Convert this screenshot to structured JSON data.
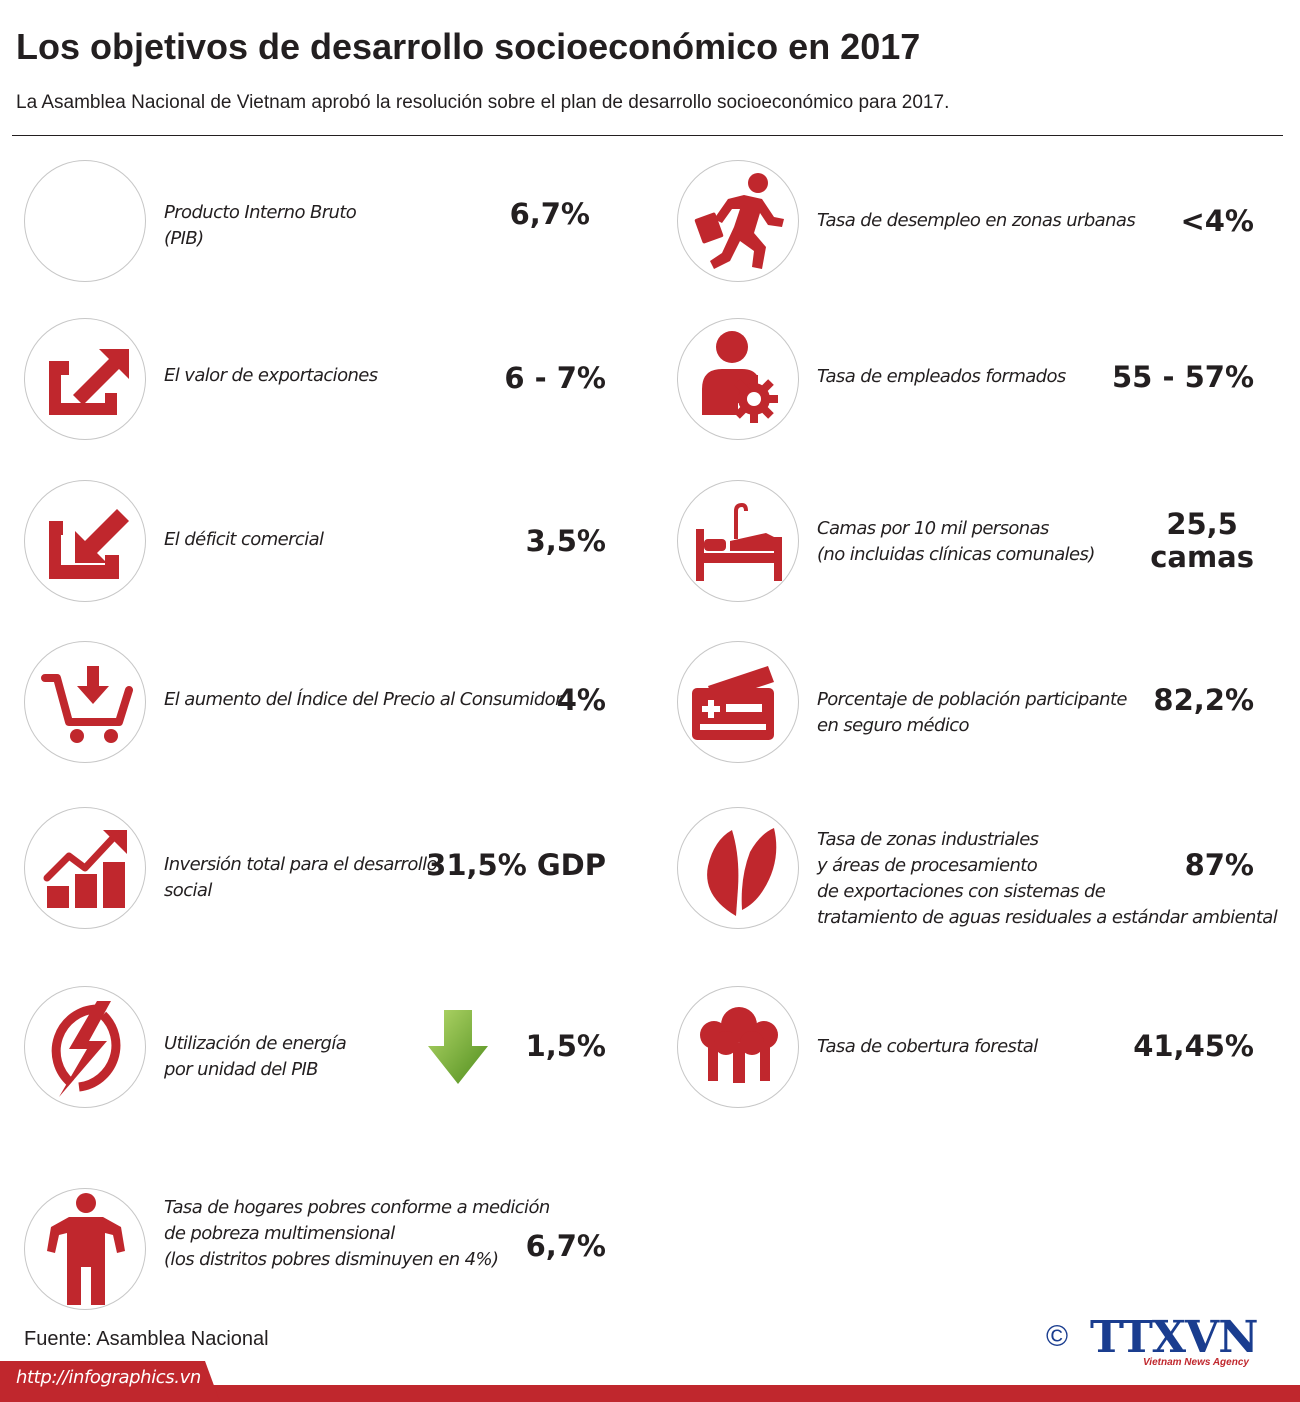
{
  "header": {
    "title": "Los objetivos de desarrollo socioeconómico en 2017",
    "subtitle": "La Asamblea Nacional de Vietnam aprobó la resolución sobre el plan de desarrollo socioeconómico para 2017."
  },
  "colors": {
    "accent": "#c0272d",
    "text": "#231f20",
    "circle_border": "#c7c7c7",
    "arrow_green": "#6fae2f",
    "logo_blue": "#1a3d8f"
  },
  "left": [
    {
      "icon": "blank-icon",
      "label": [
        "Producto Interno Bruto",
        " (PIB)"
      ],
      "value": [
        "6,7%"
      ]
    },
    {
      "icon": "export-arrow-icon",
      "label": [
        "El valor de exportaciones"
      ],
      "value": [
        "6 - 7%"
      ]
    },
    {
      "icon": "import-arrow-icon",
      "label": [
        "El déficit comercial"
      ],
      "value": [
        "3,5%"
      ]
    },
    {
      "icon": "shopping-cart-icon",
      "label": [
        "El aumento del Índice del Precio al Consumidor"
      ],
      "value": [
        "4%"
      ]
    },
    {
      "icon": "growth-chart-icon",
      "label": [
        "Inversión total para el desarrollo",
        "social"
      ],
      "value": [
        "31,5% GDP"
      ]
    },
    {
      "icon": "lightning-icon",
      "label": [
        "Utilización de energía",
        "por unidad del PIB"
      ],
      "value": [
        "1,5%"
      ],
      "trend_icon": "green-down-arrow-icon"
    },
    {
      "icon": "person-icon",
      "label": [
        "Tasa de hogares  pobres conforme a medición",
        "de pobreza multimensional",
        "(los distritos pobres  disminuyen en 4%)"
      ],
      "value": [
        "6,7%"
      ]
    }
  ],
  "right": [
    {
      "icon": "running-man-icon",
      "label": [
        "Tasa de desempleo en zonas urbanas"
      ],
      "value": [
        "<4%"
      ]
    },
    {
      "icon": "worker-gear-icon",
      "label": [
        "Tasa de empleados formados"
      ],
      "value": [
        "55 - 57%"
      ]
    },
    {
      "icon": "hospital-bed-icon",
      "label": [
        "Camas por 10 mil personas",
        "(no incluidas clínicas comunales)"
      ],
      "value": [
        "25,5",
        "camas"
      ]
    },
    {
      "icon": "health-card-icon",
      "label": [
        "Porcentaje de población participante",
        "en seguro médico"
      ],
      "value": [
        "82,2%"
      ]
    },
    {
      "icon": "leaf-icon",
      "label": [
        "Tasa de zonas industriales",
        " y áreas de procesamiento",
        "de exportaciones con sistemas de",
        "tratamiento de aguas residuales a estándar ambiental"
      ],
      "value": [
        "87%"
      ]
    },
    {
      "icon": "forest-icon",
      "label": [
        "Tasa de cobertura forestal"
      ],
      "value": [
        "41,45%"
      ]
    }
  ],
  "footer": {
    "source": "Fuente: Asamblea Nacional",
    "url": "http://infographics.vn",
    "copyright": "©",
    "logo": "TTXVN",
    "logo_sub": "Vietnam News Agency"
  }
}
